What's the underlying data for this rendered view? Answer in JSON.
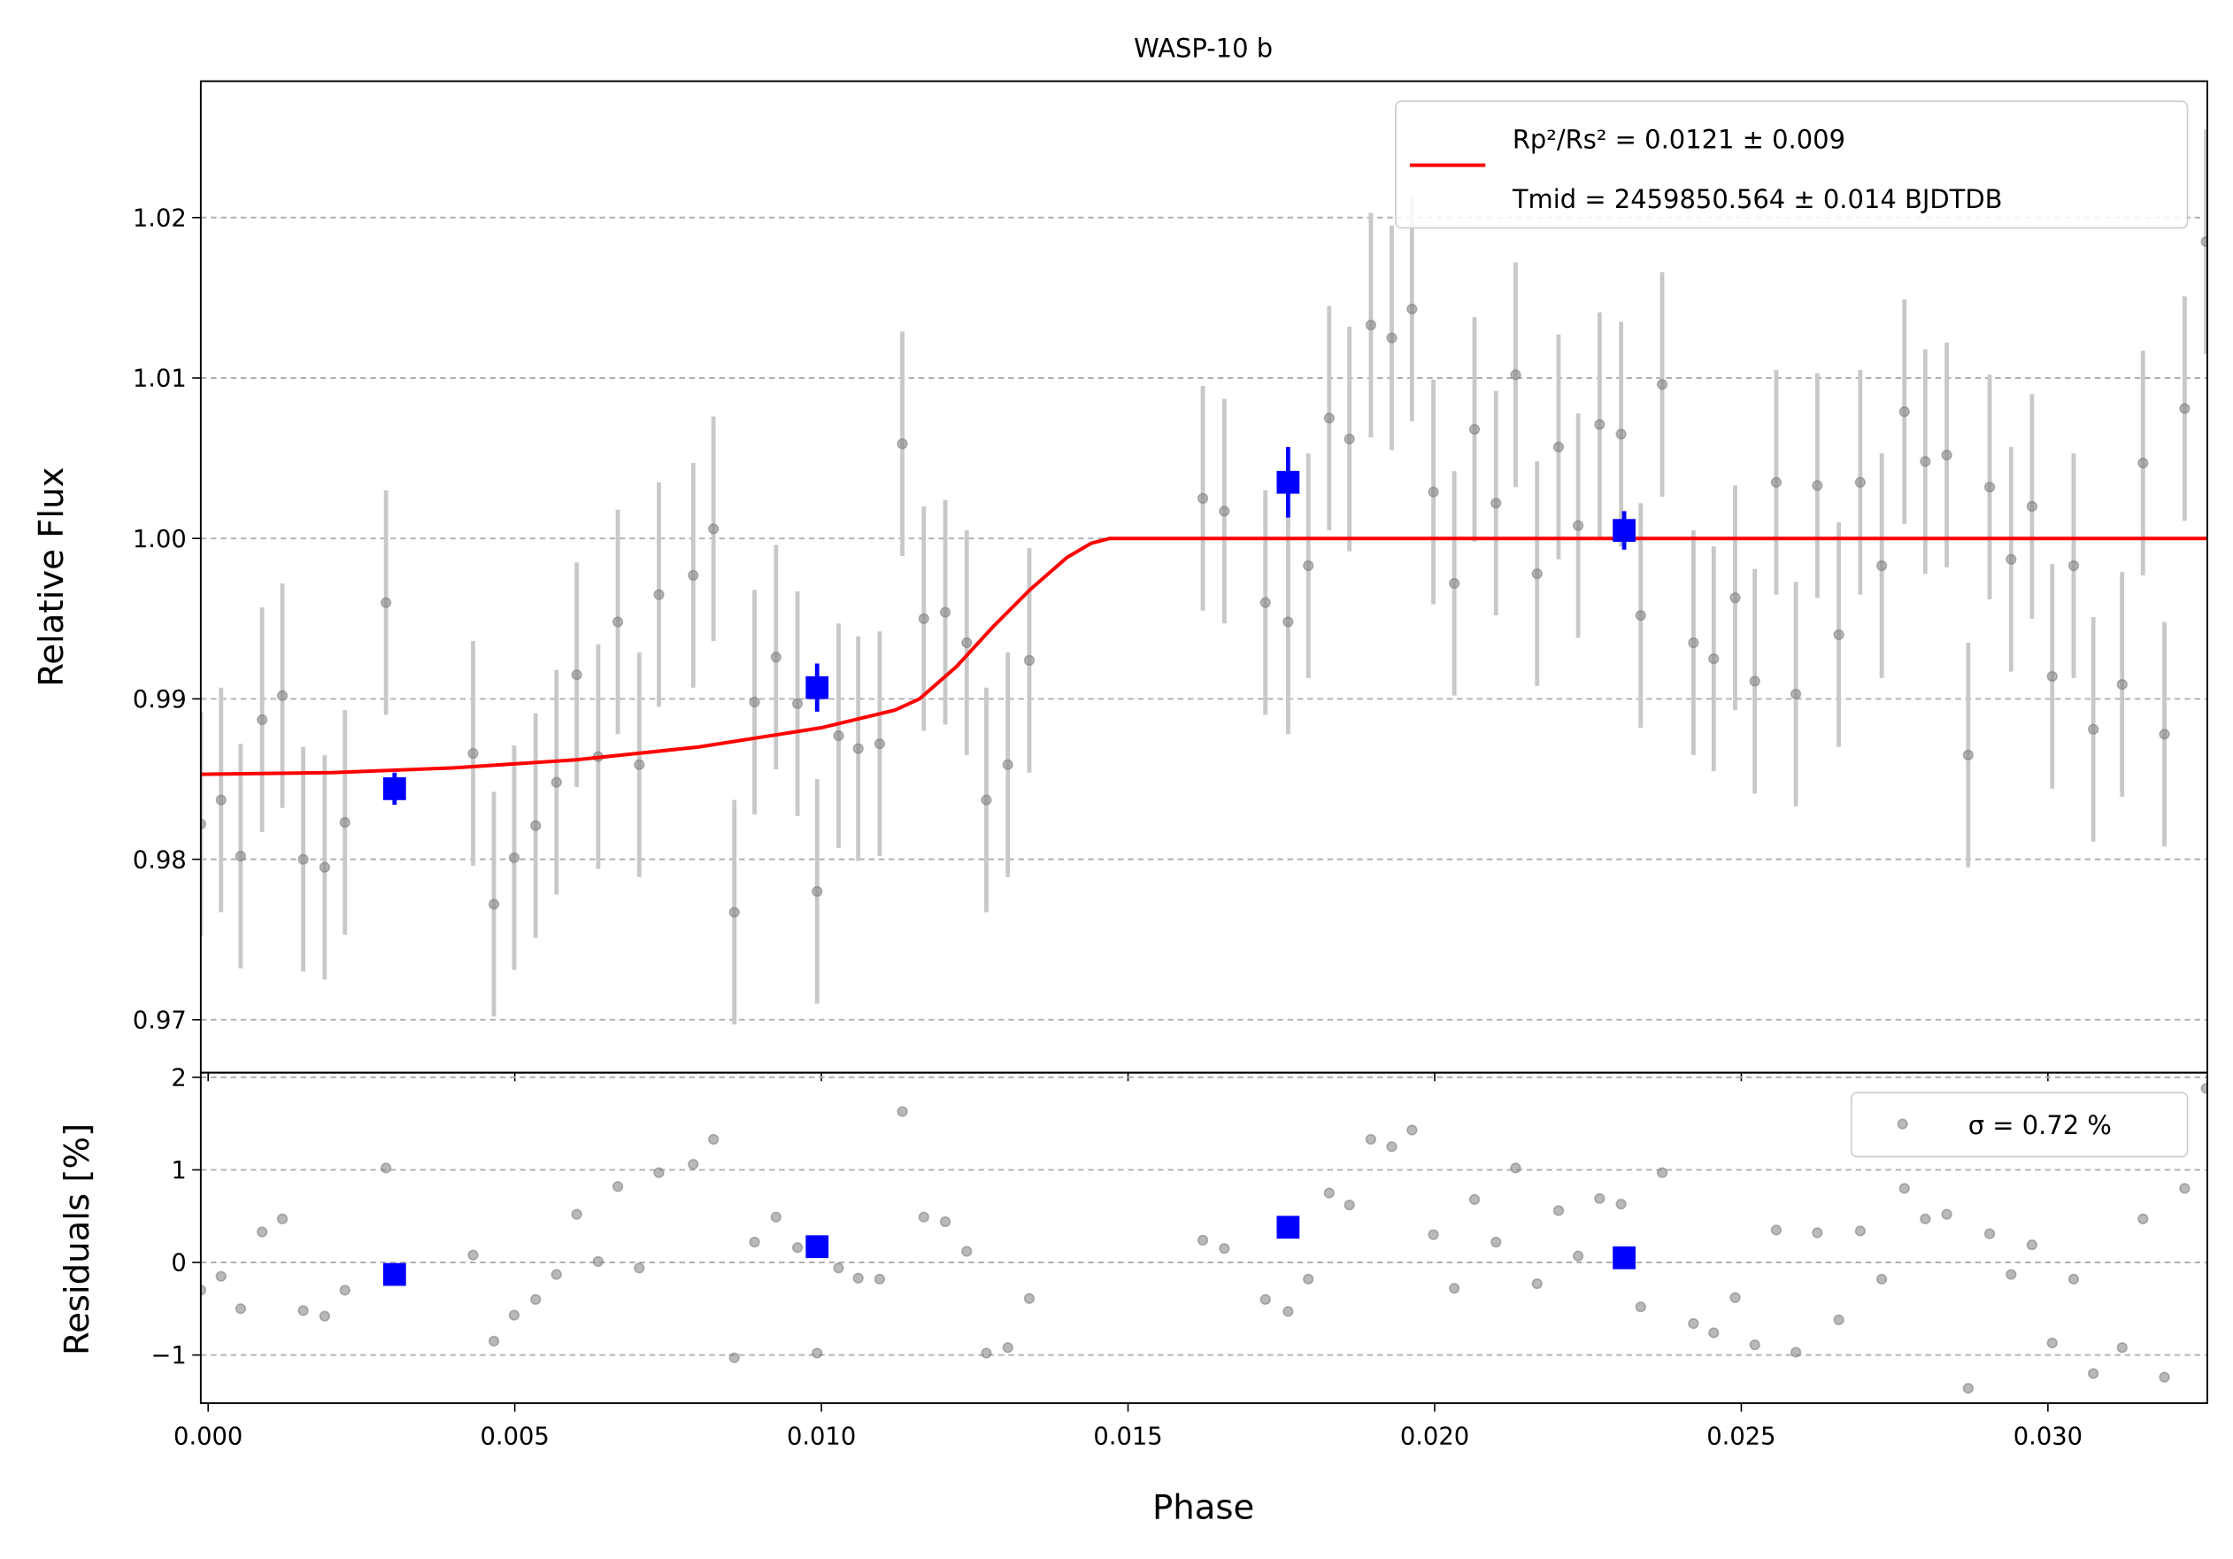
{
  "chart_data": [
    {
      "type": "scatter",
      "title": "WASP-10 b",
      "y_label": "Relative Flux",
      "xlim": [
        -0.00012,
        0.0326
      ],
      "ylim": [
        0.9667,
        1.0285
      ],
      "yticks": [
        0.97,
        0.98,
        0.99,
        {
          "value": 1.0,
          "label": "1.00"
        },
        1.01,
        1.02
      ],
      "grid": true,
      "legend": "upper right",
      "color": "#808080",
      "error_color": "#c8c8c8",
      "x": [
        -0.00012,
        0.00021,
        0.00053,
        0.00088,
        0.00121,
        0.00155,
        0.0019,
        0.00223,
        0.0029,
        0.00432,
        0.00466,
        0.00499,
        0.00534,
        0.00568,
        0.00601,
        0.00636,
        0.00668,
        0.00703,
        0.00735,
        0.00791,
        0.00824,
        0.00858,
        0.00891,
        0.00926,
        0.00961,
        0.00993,
        0.01028,
        0.0106,
        0.01095,
        0.01132,
        0.01167,
        0.01202,
        0.01237,
        0.01269,
        0.01304,
        0.01339,
        0.01622,
        0.01657,
        0.01724,
        0.01761,
        0.01794,
        0.01828,
        0.01861,
        0.01896,
        0.0193,
        0.01963,
        0.01998,
        0.02032,
        0.02065,
        0.021,
        0.02132,
        0.02167,
        0.02202,
        0.02234,
        0.02269,
        0.02304,
        0.02336,
        0.02371,
        0.02422,
        0.02455,
        0.0249,
        0.02522,
        0.02557,
        0.02589,
        0.02624,
        0.02659,
        0.02694,
        0.02729,
        0.02766,
        0.028,
        0.02835,
        0.0287,
        0.02905,
        0.0294,
        0.02974,
        0.03007,
        0.03042,
        0.03074,
        0.03121,
        0.03155,
        0.0319,
        0.03223,
        0.03258
      ],
      "values": [
        0.9822,
        0.9837,
        0.9802,
        0.9887,
        0.9902,
        0.98,
        0.9795,
        0.9823,
        0.996,
        0.9866,
        0.9772,
        0.9801,
        0.9821,
        0.9848,
        0.9915,
        0.9864,
        0.9948,
        0.9859,
        0.9965,
        0.9977,
        1.0006,
        0.9767,
        0.9898,
        0.9926,
        0.9897,
        0.978,
        0.9877,
        0.9869,
        0.9872,
        1.0059,
        0.995,
        0.9954,
        0.9935,
        0.9837,
        0.9859,
        0.9924,
        1.0025,
        1.0017,
        0.996,
        0.9948,
        0.9983,
        1.0075,
        1.0062,
        1.0133,
        1.0125,
        1.0143,
        1.0029,
        0.9972,
        1.0068,
        1.0022,
        1.0102,
        0.9978,
        1.0057,
        1.0008,
        1.0071,
        1.0065,
        0.9952,
        1.0096,
        0.9935,
        0.9925,
        0.9963,
        0.9911,
        1.0035,
        0.9903,
        1.0033,
        0.994,
        1.0035,
        0.9983,
        1.0079,
        1.0048,
        1.0052,
        0.9865,
        1.0032,
        0.9987,
        1.002,
        0.9914,
        0.9983,
        0.9881,
        0.9909,
        1.0047,
        0.9878,
        1.0081,
        1.0185
      ],
      "errors": [
        0.007,
        0.007,
        0.007,
        0.007,
        0.007,
        0.007,
        0.007,
        0.007,
        0.007,
        0.007,
        0.007,
        0.007,
        0.007,
        0.007,
        0.007,
        0.007,
        0.007,
        0.007,
        0.007,
        0.007,
        0.007,
        0.007,
        0.007,
        0.007,
        0.007,
        0.007,
        0.007,
        0.007,
        0.007,
        0.007,
        0.007,
        0.007,
        0.007,
        0.007,
        0.007,
        0.007,
        0.007,
        0.007,
        0.007,
        0.007,
        0.007,
        0.007,
        0.007,
        0.007,
        0.007,
        0.007,
        0.007,
        0.007,
        0.007,
        0.007,
        0.007,
        0.007,
        0.007,
        0.007,
        0.007,
        0.007,
        0.007,
        0.007,
        0.007,
        0.007,
        0.007,
        0.007,
        0.007,
        0.007,
        0.007,
        0.007,
        0.007,
        0.007,
        0.007,
        0.007,
        0.007,
        0.007,
        0.007,
        0.007,
        0.007,
        0.007,
        0.007,
        0.007,
        0.007,
        0.007,
        0.007,
        0.007,
        0.007
      ],
      "binned": {
        "color": "#0000ff",
        "x": [
          0.00304,
          0.00993,
          0.01761,
          0.02309
        ],
        "values": [
          0.9844,
          0.9907,
          1.0035,
          1.0005
        ],
        "errors": [
          0.001,
          0.0015,
          0.0022,
          0.0012
        ]
      },
      "model": {
        "color": "#ff0000",
        "legend_lines": [
          "Rp²/Rs² = 0.0121 ± 0.009",
          "Tmid = 2459850.564 ± 0.014 BJDTDB"
        ],
        "x": [
          -0.00012,
          0.002,
          0.004,
          0.006,
          0.008,
          0.01,
          0.0112,
          0.0116,
          0.0122,
          0.0128,
          0.0134,
          0.014,
          0.0144,
          0.0147,
          0.0326
        ],
        "values": [
          0.9853,
          0.9854,
          0.9857,
          0.9862,
          0.987,
          0.9882,
          0.9893,
          0.99,
          0.992,
          0.9945,
          0.9968,
          0.9988,
          0.9997,
          1.0,
          1.0
        ]
      }
    },
    {
      "type": "residuals",
      "x_label": "Phase",
      "y_label": "Residuals [%]",
      "xlim": [
        -0.00012,
        0.0326
      ],
      "ylim": [
        -1.52,
        2.05
      ],
      "xticks": [
        {
          "value": 0.0,
          "label": "0.000"
        },
        {
          "value": 0.005,
          "label": "0.005"
        },
        {
          "value": 0.01,
          "label": "0.010"
        },
        {
          "value": 0.015,
          "label": "0.015"
        },
        {
          "value": 0.02,
          "label": "0.020"
        },
        {
          "value": 0.025,
          "label": "0.025"
        },
        {
          "value": 0.03,
          "label": "0.030"
        }
      ],
      "yticks": [
        {
          "value": -1,
          "label": "−1"
        },
        0,
        1,
        2
      ],
      "grid": true,
      "legend": "upper right",
      "legend_label": "σ = 0.72 %",
      "color": "#808080",
      "values": [
        -0.3,
        -0.15,
        -0.5,
        0.33,
        0.47,
        -0.52,
        -0.58,
        -0.3,
        1.02,
        0.08,
        -0.85,
        -0.57,
        -0.4,
        -0.13,
        0.52,
        0.01,
        0.82,
        -0.06,
        0.97,
        1.06,
        1.33,
        -1.03,
        0.22,
        0.49,
        0.16,
        -0.98,
        -0.06,
        -0.17,
        -0.18,
        1.63,
        0.49,
        0.44,
        0.12,
        -0.98,
        -0.92,
        -0.39,
        0.24,
        0.15,
        -0.4,
        -0.53,
        -0.18,
        0.75,
        0.62,
        1.33,
        1.25,
        1.43,
        0.3,
        -0.28,
        0.68,
        0.22,
        1.02,
        -0.23,
        0.56,
        0.07,
        0.69,
        0.63,
        -0.48,
        0.97,
        -0.66,
        -0.76,
        -0.38,
        -0.89,
        0.35,
        -0.97,
        0.32,
        -0.62,
        0.34,
        -0.18,
        0.8,
        0.47,
        0.52,
        -1.36,
        0.31,
        -0.13,
        0.19,
        -0.87,
        -0.18,
        -1.2,
        -0.92,
        0.47,
        -1.24,
        0.8,
        1.88
      ],
      "binned_values": [
        -0.13,
        0.17,
        0.38,
        0.05
      ],
      "binned_color": "#0000ff"
    }
  ]
}
